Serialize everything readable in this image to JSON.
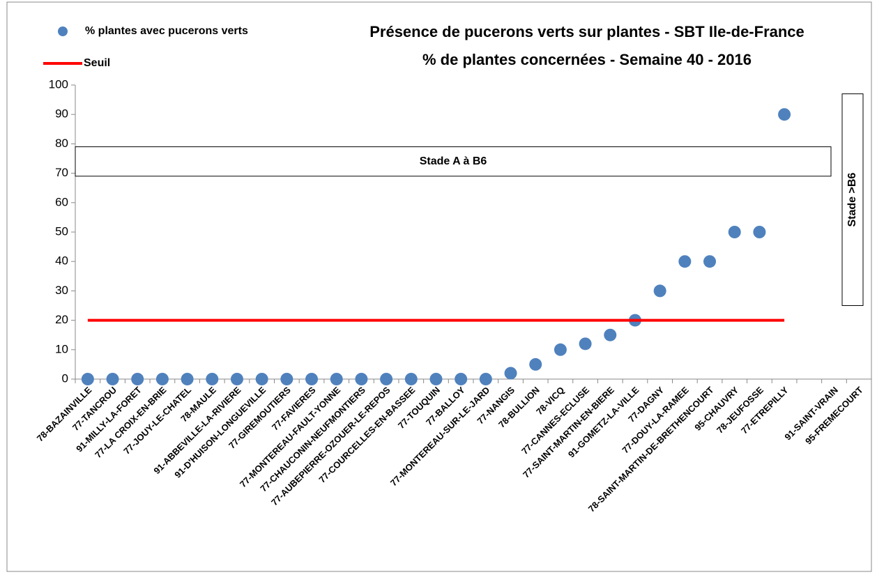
{
  "chart_data": {
    "type": "scatter",
    "title": [
      "Présence de pucerons verts sur plantes - SBT Ile-de-France",
      "% de plantes concernées - Semaine 40 - 2016"
    ],
    "categories": [
      "78-BAZAINVILLE",
      "77-TANCROU",
      "91-MILLY-LA-FORET",
      "77-LA CROIX-EN-BRIE",
      "77-JOUY-LE-CHATEL",
      "78-MAULE",
      "91-ABBEVILLE-LA-RIVIERE",
      "91-D'HUISON-LONGUEVILLE",
      "77-GIREMOUTIERS",
      "77-FAVIERES",
      "77-MONTEREAU-FAULT-YONNE",
      "77-CHAUCONIN-NEUFMONTIERS",
      "77-AUBEPIERRE-OZOUER-LE-REPOS",
      "77-COURCELLES-EN-BASSEE",
      "77-TOUQUIN",
      "77-BALLOY",
      "77-MONTEREAU-SUR-LE-JARD",
      "77-NANGIS",
      "78-BULLION",
      "78-VICQ",
      "77-CANNES-ECLUSE",
      "77-SAINT-MARTIN-EN-BIERE",
      "91-GOMETZ-LA-VILLE",
      "77-DAGNY",
      "77-DOUY-LA-RAMEE",
      "78-SAINT-MARTIN-DE-BRETHENCOURT",
      "95-CHAUVRY",
      "78-JEUFOSSE",
      "77-ETREPILLY",
      null,
      "91-SAINT-VRAIN",
      "95-FREMECOURT"
    ],
    "series": [
      {
        "name": "% plantes avec pucerons verts",
        "color": "#4f81bd",
        "mark": "dot",
        "values": [
          0,
          0,
          0,
          0,
          0,
          0,
          0,
          0,
          0,
          0,
          0,
          0,
          0,
          0,
          0,
          0,
          0,
          2,
          5,
          10,
          12,
          15,
          20,
          30,
          40,
          40,
          50,
          50,
          90,
          null,
          null,
          null
        ]
      },
      {
        "name": "Seuil",
        "color": "#ff0000",
        "mark": "line",
        "values": [
          20,
          20,
          20,
          20,
          20,
          20,
          20,
          20,
          20,
          20,
          20,
          20,
          20,
          20,
          20,
          20,
          20,
          20,
          20,
          20,
          20,
          20,
          20,
          20,
          20,
          20,
          20,
          20,
          20,
          null,
          null,
          null
        ]
      }
    ],
    "annotations": [
      "Stade A à B6",
      "Stade >B6"
    ],
    "ylim": [
      0,
      100
    ],
    "yticks": [
      0,
      10,
      20,
      30,
      40,
      50,
      60,
      70,
      80,
      90,
      100
    ],
    "grid": false
  }
}
